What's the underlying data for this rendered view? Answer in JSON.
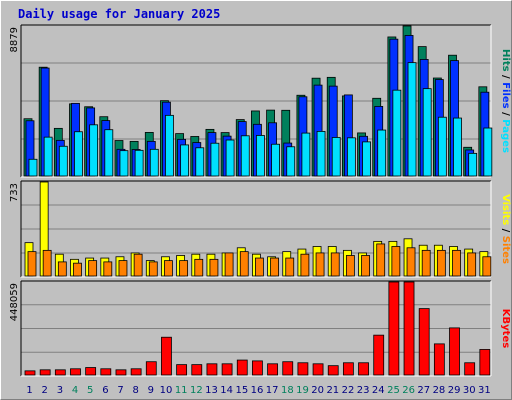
{
  "title": "Daily usage for January 2025",
  "colors": {
    "hits": "#00805c",
    "files": "#0030ff",
    "pages": "#00e0ff",
    "visits": "#ffff00",
    "sites": "#ff8000",
    "kbytes": "#ff0000",
    "weekend_label": "#00805c",
    "weekday_label": "#000080",
    "title": "#0000cc"
  },
  "chart_data": [
    {
      "type": "bar",
      "title": "Daily usage for January 2025",
      "panel": "hits-files-pages",
      "ymax_label": "8879",
      "ymax": 8879,
      "legend": [
        {
          "text": "Pages",
          "color": "#00e0ff"
        },
        {
          "text": "Files",
          "color": "#0030ff"
        },
        {
          "text": "Hits",
          "color": "#00805c"
        }
      ],
      "categories": [
        "1",
        "2",
        "3",
        "4",
        "5",
        "6",
        "7",
        "8",
        "9",
        "10",
        "11",
        "12",
        "13",
        "14",
        "15",
        "16",
        "17",
        "18",
        "19",
        "20",
        "21",
        "22",
        "23",
        "24",
        "25",
        "26",
        "27",
        "28",
        "29",
        "30",
        "31"
      ],
      "series": [
        {
          "name": "Hits",
          "values": [
            3390,
            6440,
            2820,
            4270,
            4100,
            3510,
            2100,
            2050,
            2580,
            4460,
            2510,
            2340,
            2760,
            2570,
            3340,
            3850,
            3900,
            3890,
            4780,
            5790,
            5840,
            4740,
            2550,
            4600,
            8230,
            8880,
            7660,
            5800,
            7150,
            1700,
            5280
          ]
        },
        {
          "name": "Files",
          "values": [
            3270,
            6390,
            2110,
            4300,
            4030,
            3280,
            1580,
            1570,
            2050,
            4370,
            2170,
            1980,
            2570,
            2360,
            3220,
            3060,
            3150,
            1950,
            4690,
            5380,
            5320,
            4800,
            2350,
            4120,
            8100,
            8320,
            6900,
            5710,
            6830,
            1540,
            4960
          ]
        },
        {
          "name": "Pages",
          "values": [
            990,
            2300,
            1760,
            2620,
            3030,
            2740,
            1500,
            1520,
            1580,
            3590,
            1840,
            1670,
            1940,
            2130,
            2380,
            2400,
            1880,
            1730,
            2540,
            2640,
            2280,
            2260,
            2020,
            2720,
            5080,
            6710,
            5170,
            3480,
            3430,
            1340,
            2840
          ]
        }
      ]
    },
    {
      "type": "bar",
      "panel": "visits-sites",
      "ymax_label": "733",
      "ymax": 733,
      "legend": [
        {
          "text": "Sites",
          "color": "#ff8000"
        },
        {
          "text": "Visits",
          "color": "#ffff00"
        }
      ],
      "categories": [
        "1",
        "2",
        "3",
        "4",
        "5",
        "6",
        "7",
        "8",
        "9",
        "10",
        "11",
        "12",
        "13",
        "14",
        "15",
        "16",
        "17",
        "18",
        "19",
        "20",
        "21",
        "22",
        "23",
        "24",
        "25",
        "26",
        "27",
        "28",
        "29",
        "30",
        "31"
      ],
      "series": [
        {
          "name": "Visits",
          "values": [
            260,
            733,
            170,
            130,
            140,
            140,
            150,
            180,
            120,
            150,
            160,
            170,
            170,
            180,
            220,
            170,
            150,
            190,
            210,
            230,
            230,
            200,
            180,
            270,
            270,
            290,
            240,
            240,
            230,
            210,
            190
          ]
        },
        {
          "name": "Sites",
          "values": [
            190,
            200,
            110,
            100,
            120,
            110,
            120,
            170,
            110,
            120,
            120,
            130,
            130,
            180,
            190,
            140,
            140,
            140,
            170,
            180,
            180,
            160,
            160,
            250,
            230,
            220,
            200,
            200,
            200,
            180,
            150
          ]
        }
      ]
    },
    {
      "type": "bar",
      "panel": "kbytes",
      "ymax_label": "448059",
      "ymax": 448059,
      "legend": [
        {
          "text": "KBytes",
          "color": "#ff0000"
        }
      ],
      "categories": [
        "1",
        "2",
        "3",
        "4",
        "5",
        "6",
        "7",
        "8",
        "9",
        "10",
        "11",
        "12",
        "13",
        "14",
        "15",
        "16",
        "17",
        "18",
        "19",
        "20",
        "21",
        "22",
        "23",
        "24",
        "25",
        "26",
        "27",
        "28",
        "29",
        "30",
        "31"
      ],
      "values": [
        20000,
        25000,
        25000,
        30000,
        36000,
        30000,
        25000,
        30000,
        64000,
        182000,
        50000,
        50000,
        54000,
        54000,
        72000,
        68000,
        54000,
        64000,
        59000,
        54000,
        45000,
        59000,
        59000,
        192000,
        448059,
        448059,
        320000,
        150000,
        227000,
        59000,
        123000
      ],
      "weekend_days": [
        "4",
        "5",
        "11",
        "12",
        "18",
        "19",
        "25",
        "26"
      ]
    }
  ]
}
